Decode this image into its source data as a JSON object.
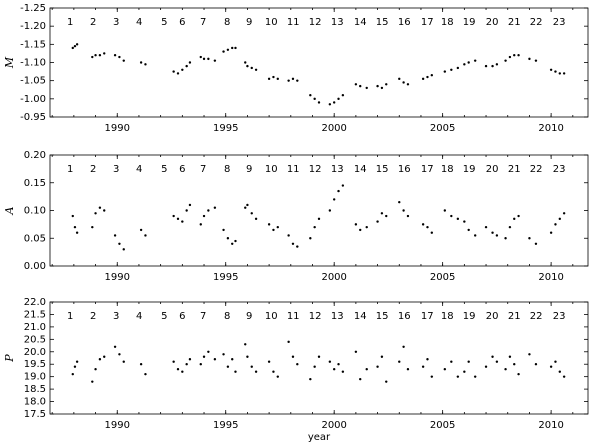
{
  "chart_data": [
    {
      "type": "scatter",
      "ylabel": "M",
      "color": "#000000",
      "xlim": [
        1986.9,
        2011.7
      ],
      "ylim": [
        -0.95,
        -1.25
      ],
      "xticks": [
        1990,
        1995,
        2000,
        2005,
        2010
      ],
      "yticks": [
        {
          "value": -1.25,
          "label": "-1.25"
        },
        {
          "value": -1.2,
          "label": "-1.20"
        },
        {
          "value": -1.15,
          "label": "-1.15"
        },
        {
          "value": -1.1,
          "label": "-1.10"
        },
        {
          "value": -1.05,
          "label": "-1.05"
        },
        {
          "value": -1.0,
          "label": "-1.00"
        },
        {
          "value": -0.95,
          "label": "-0.95"
        }
      ],
      "annotations": [
        {
          "text": "1",
          "x": 1987.83
        },
        {
          "text": "2",
          "x": 1988.89
        },
        {
          "text": "3",
          "x": 1989.95
        },
        {
          "text": "4",
          "x": 1991.01
        },
        {
          "text": "5",
          "x": 1992.17
        },
        {
          "text": "6",
          "x": 1993.0
        },
        {
          "text": "7",
          "x": 1993.96
        },
        {
          "text": "8",
          "x": 1995.07
        },
        {
          "text": "9",
          "x": 1996.08
        },
        {
          "text": "10",
          "x": 1997.1
        },
        {
          "text": "11",
          "x": 1998.11
        },
        {
          "text": "12",
          "x": 1999.12
        },
        {
          "text": "13",
          "x": 2000.14
        },
        {
          "text": "14",
          "x": 2001.2
        },
        {
          "text": "15",
          "x": 2002.21
        },
        {
          "text": "16",
          "x": 2003.23
        },
        {
          "text": "17",
          "x": 2004.29
        },
        {
          "text": "18",
          "x": 2005.21
        },
        {
          "text": "19",
          "x": 2006.22
        },
        {
          "text": "20",
          "x": 2007.28
        },
        {
          "text": "21",
          "x": 2008.3
        },
        {
          "text": "22",
          "x": 2009.31
        },
        {
          "text": "23",
          "x": 2010.37
        }
      ],
      "x": [
        1987.95,
        1988.05,
        1988.15,
        1988.85,
        1989.0,
        1989.2,
        1989.4,
        1989.9,
        1990.1,
        1990.3,
        1991.1,
        1991.3,
        1992.6,
        1992.8,
        1993.0,
        1993.2,
        1993.35,
        1993.85,
        1994.0,
        1994.2,
        1994.5,
        1994.9,
        1995.1,
        1995.3,
        1995.45,
        1995.9,
        1996.0,
        1996.2,
        1996.4,
        1997.0,
        1997.2,
        1997.4,
        1997.9,
        1998.1,
        1998.3,
        1998.9,
        1999.1,
        1999.3,
        1999.8,
        2000.0,
        2000.2,
        2000.4,
        2001.0,
        2001.2,
        2001.5,
        2002.0,
        2002.2,
        2002.4,
        2003.0,
        2003.2,
        2003.4,
        2004.1,
        2004.3,
        2004.5,
        2005.1,
        2005.4,
        2005.7,
        2006.0,
        2006.2,
        2006.5,
        2007.0,
        2007.3,
        2007.5,
        2007.9,
        2008.1,
        2008.3,
        2008.5,
        2009.0,
        2009.3,
        2010.0,
        2010.2,
        2010.4,
        2010.6
      ],
      "values": [
        -1.14,
        -1.145,
        -1.15,
        -1.115,
        -1.12,
        -1.12,
        -1.125,
        -1.12,
        -1.115,
        -1.105,
        -1.1,
        -1.095,
        -1.075,
        -1.07,
        -1.08,
        -1.09,
        -1.1,
        -1.115,
        -1.11,
        -1.11,
        -1.105,
        -1.13,
        -1.135,
        -1.14,
        -1.14,
        -1.1,
        -1.09,
        -1.085,
        -1.08,
        -1.055,
        -1.06,
        -1.055,
        -1.05,
        -1.055,
        -1.05,
        -1.01,
        -1.0,
        -0.99,
        -0.985,
        -0.99,
        -1.0,
        -1.01,
        -1.04,
        -1.035,
        -1.03,
        -1.035,
        -1.03,
        -1.04,
        -1.055,
        -1.045,
        -1.04,
        -1.055,
        -1.06,
        -1.065,
        -1.075,
        -1.08,
        -1.085,
        -1.095,
        -1.1,
        -1.105,
        -1.09,
        -1.09,
        -1.095,
        -1.105,
        -1.115,
        -1.12,
        -1.12,
        -1.11,
        -1.105,
        -1.08,
        -1.075,
        -1.07,
        -1.07
      ]
    },
    {
      "type": "scatter",
      "ylabel": "A",
      "color": "#000000",
      "xlim": [
        1986.9,
        2011.7
      ],
      "ylim": [
        0.0,
        0.2
      ],
      "xticks": [
        1990,
        1995,
        2000,
        2005,
        2010
      ],
      "yticks": [
        {
          "value": 0.0,
          "label": "0.00"
        },
        {
          "value": 0.05,
          "label": "0.05"
        },
        {
          "value": 0.1,
          "label": "0.10"
        },
        {
          "value": 0.15,
          "label": "0.15"
        },
        {
          "value": 0.2,
          "label": "0.20"
        }
      ],
      "annotations": [
        {
          "text": "1",
          "x": 1987.83
        },
        {
          "text": "2",
          "x": 1988.89
        },
        {
          "text": "3",
          "x": 1989.95
        },
        {
          "text": "4",
          "x": 1991.01
        },
        {
          "text": "5",
          "x": 1992.17
        },
        {
          "text": "6",
          "x": 1993.0
        },
        {
          "text": "7",
          "x": 1993.96
        },
        {
          "text": "8",
          "x": 1995.07
        },
        {
          "text": "9",
          "x": 1996.08
        },
        {
          "text": "10",
          "x": 1997.1
        },
        {
          "text": "11",
          "x": 1998.11
        },
        {
          "text": "12",
          "x": 1999.12
        },
        {
          "text": "13",
          "x": 2000.14
        },
        {
          "text": "14",
          "x": 2001.2
        },
        {
          "text": "15",
          "x": 2002.21
        },
        {
          "text": "16",
          "x": 2003.23
        },
        {
          "text": "17",
          "x": 2004.29
        },
        {
          "text": "18",
          "x": 2005.21
        },
        {
          "text": "19",
          "x": 2006.22
        },
        {
          "text": "20",
          "x": 2007.28
        },
        {
          "text": "21",
          "x": 2008.3
        },
        {
          "text": "22",
          "x": 2009.31
        },
        {
          "text": "23",
          "x": 2010.37
        }
      ],
      "x": [
        1987.95,
        1988.05,
        1988.15,
        1988.85,
        1989.0,
        1989.2,
        1989.4,
        1989.9,
        1990.1,
        1990.3,
        1991.1,
        1991.3,
        1992.6,
        1992.8,
        1993.0,
        1993.2,
        1993.35,
        1993.85,
        1994.0,
        1994.2,
        1994.5,
        1994.9,
        1995.1,
        1995.3,
        1995.45,
        1995.9,
        1996.0,
        1996.2,
        1996.4,
        1997.0,
        1997.2,
        1997.4,
        1997.9,
        1998.1,
        1998.3,
        1998.9,
        1999.1,
        1999.3,
        1999.8,
        2000.0,
        2000.2,
        2000.4,
        2001.0,
        2001.2,
        2001.5,
        2002.0,
        2002.2,
        2002.4,
        2003.0,
        2003.2,
        2003.4,
        2004.1,
        2004.3,
        2004.5,
        2005.1,
        2005.4,
        2005.7,
        2006.0,
        2006.2,
        2006.5,
        2007.0,
        2007.3,
        2007.5,
        2007.9,
        2008.1,
        2008.3,
        2008.5,
        2009.0,
        2009.3,
        2010.0,
        2010.2,
        2010.4,
        2010.6
      ],
      "values": [
        0.09,
        0.07,
        0.06,
        0.07,
        0.095,
        0.105,
        0.1,
        0.055,
        0.04,
        0.03,
        0.065,
        0.055,
        0.09,
        0.085,
        0.08,
        0.1,
        0.11,
        0.075,
        0.09,
        0.1,
        0.105,
        0.065,
        0.05,
        0.04,
        0.045,
        0.105,
        0.11,
        0.095,
        0.085,
        0.075,
        0.065,
        0.07,
        0.055,
        0.04,
        0.035,
        0.05,
        0.07,
        0.085,
        0.1,
        0.12,
        0.135,
        0.145,
        0.075,
        0.065,
        0.07,
        0.08,
        0.095,
        0.09,
        0.115,
        0.1,
        0.09,
        0.075,
        0.07,
        0.06,
        0.1,
        0.09,
        0.085,
        0.08,
        0.065,
        0.055,
        0.07,
        0.06,
        0.055,
        0.05,
        0.07,
        0.085,
        0.09,
        0.05,
        0.04,
        0.06,
        0.075,
        0.085,
        0.095
      ]
    },
    {
      "type": "scatter",
      "ylabel": "P",
      "xlabel": "year",
      "color": "#000000",
      "xlim": [
        1986.9,
        2011.7
      ],
      "ylim": [
        17.5,
        22.0
      ],
      "xticks": [
        1990,
        1995,
        2000,
        2005,
        2010
      ],
      "yticks": [
        {
          "value": 17.5,
          "label": "17.5"
        },
        {
          "value": 18.0,
          "label": "18.0"
        },
        {
          "value": 18.5,
          "label": "18.5"
        },
        {
          "value": 19.0,
          "label": "19.0"
        },
        {
          "value": 19.5,
          "label": "19.5"
        },
        {
          "value": 20.0,
          "label": "20.0"
        },
        {
          "value": 20.5,
          "label": "20.5"
        },
        {
          "value": 21.0,
          "label": "21.0"
        },
        {
          "value": 21.5,
          "label": "21.5"
        },
        {
          "value": 22.0,
          "label": "22.0"
        }
      ],
      "annotations": [
        {
          "text": "1",
          "x": 1987.83
        },
        {
          "text": "2",
          "x": 1988.89
        },
        {
          "text": "3",
          "x": 1989.95
        },
        {
          "text": "4",
          "x": 1991.01
        },
        {
          "text": "5",
          "x": 1992.17
        },
        {
          "text": "6",
          "x": 1993.0
        },
        {
          "text": "7",
          "x": 1993.96
        },
        {
          "text": "8",
          "x": 1995.07
        },
        {
          "text": "9",
          "x": 1996.08
        },
        {
          "text": "10",
          "x": 1997.1
        },
        {
          "text": "11",
          "x": 1998.11
        },
        {
          "text": "12",
          "x": 1999.12
        },
        {
          "text": "13",
          "x": 2000.14
        },
        {
          "text": "14",
          "x": 2001.2
        },
        {
          "text": "15",
          "x": 2002.21
        },
        {
          "text": "16",
          "x": 2003.23
        },
        {
          "text": "17",
          "x": 2004.29
        },
        {
          "text": "18",
          "x": 2005.21
        },
        {
          "text": "19",
          "x": 2006.22
        },
        {
          "text": "20",
          "x": 2007.28
        },
        {
          "text": "21",
          "x": 2008.3
        },
        {
          "text": "22",
          "x": 2009.31
        },
        {
          "text": "23",
          "x": 2010.37
        }
      ],
      "x": [
        1987.95,
        1988.05,
        1988.15,
        1988.85,
        1989.0,
        1989.2,
        1989.4,
        1989.9,
        1990.1,
        1990.3,
        1991.1,
        1991.3,
        1992.6,
        1992.8,
        1993.0,
        1993.2,
        1993.35,
        1993.85,
        1994.0,
        1994.2,
        1994.5,
        1994.9,
        1995.1,
        1995.3,
        1995.45,
        1995.9,
        1996.0,
        1996.2,
        1996.4,
        1997.0,
        1997.2,
        1997.4,
        1997.9,
        1998.1,
        1998.3,
        1998.9,
        1999.1,
        1999.3,
        1999.8,
        2000.0,
        2000.2,
        2000.4,
        2001.0,
        2001.2,
        2001.5,
        2002.0,
        2002.2,
        2002.4,
        2003.0,
        2003.2,
        2003.4,
        2004.1,
        2004.3,
        2004.5,
        2005.1,
        2005.4,
        2005.7,
        2006.0,
        2006.2,
        2006.5,
        2007.0,
        2007.3,
        2007.5,
        2007.9,
        2008.1,
        2008.3,
        2008.5,
        2009.0,
        2009.3,
        2010.0,
        2010.2,
        2010.4,
        2010.6
      ],
      "values": [
        19.1,
        19.4,
        19.6,
        18.8,
        19.3,
        19.7,
        19.8,
        20.2,
        19.9,
        19.6,
        19.5,
        19.1,
        19.6,
        19.3,
        19.2,
        19.5,
        19.7,
        19.5,
        19.8,
        20.0,
        19.7,
        19.9,
        19.4,
        19.7,
        19.2,
        20.3,
        19.8,
        19.4,
        19.2,
        19.6,
        19.2,
        19.0,
        20.4,
        19.8,
        19.5,
        18.9,
        19.4,
        19.8,
        19.6,
        19.3,
        19.5,
        19.2,
        20.0,
        18.9,
        19.3,
        19.4,
        19.8,
        18.8,
        19.6,
        20.2,
        19.3,
        19.4,
        19.7,
        19.0,
        19.3,
        19.6,
        19.0,
        19.2,
        19.6,
        19.0,
        19.4,
        19.8,
        19.6,
        19.3,
        19.8,
        19.5,
        19.1,
        19.9,
        19.5,
        19.4,
        19.6,
        19.2,
        19.0
      ]
    }
  ]
}
